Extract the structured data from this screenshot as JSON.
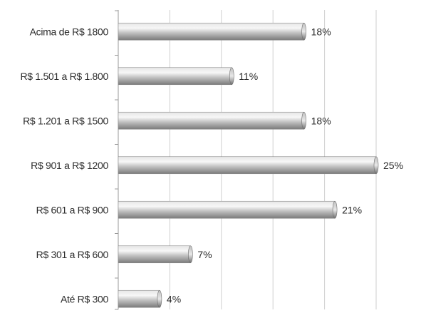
{
  "chart_data": {
    "type": "bar",
    "orientation": "horizontal",
    "categories": [
      "Acima de R$ 1800",
      "R$ 1.501 a R$ 1.800",
      "R$ 1.201 a R$ 1500",
      "R$ 901 a R$ 1200",
      "R$ 601 a R$ 900",
      "R$ 301 a R$ 600",
      "Até R$ 300"
    ],
    "values": [
      18,
      11,
      18,
      25,
      21,
      7,
      4
    ],
    "value_labels": [
      "18%",
      "11%",
      "18%",
      "25%",
      "21%",
      "7%",
      "4%"
    ],
    "xlim": [
      0,
      30
    ],
    "grid": true,
    "legend": "none",
    "colors": {
      "bar_light": "#f2f2f2",
      "bar_mid": "#bdbdbd",
      "bar_dark": "#7a7a7a",
      "grid": "#cfcfcf",
      "axis": "#9a9a9a"
    }
  }
}
